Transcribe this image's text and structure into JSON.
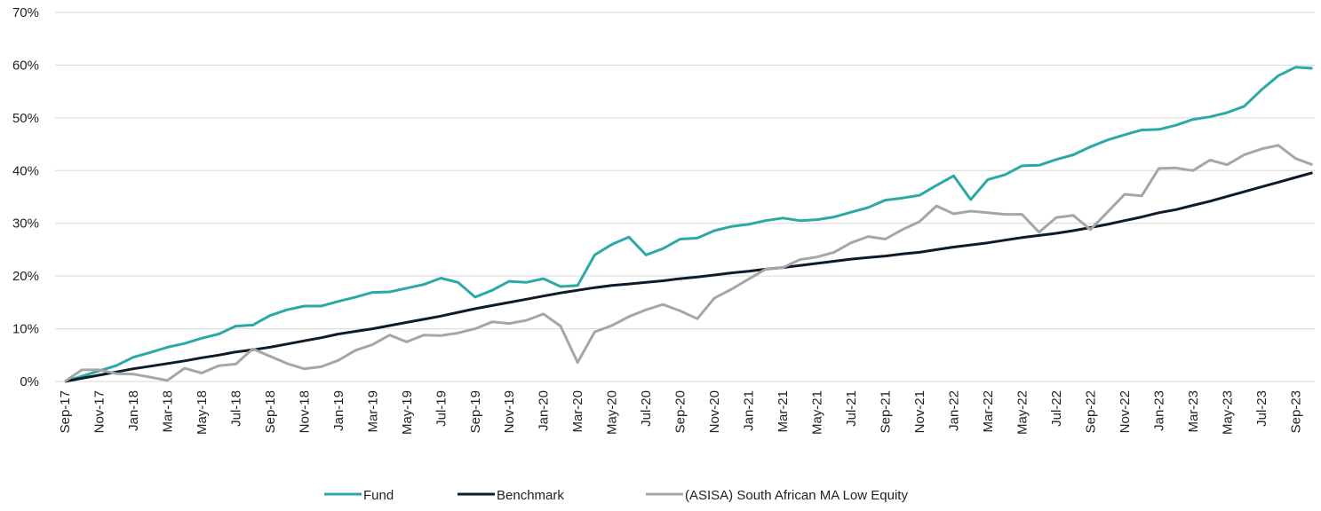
{
  "chart_data": {
    "type": "line",
    "categories": [
      "Sep-17",
      null,
      "Nov-17",
      null,
      "Jan-18",
      null,
      "Mar-18",
      null,
      "May-18",
      null,
      "Jul-18",
      null,
      "Sep-18",
      null,
      "Nov-18",
      null,
      "Jan-19",
      null,
      "Mar-19",
      null,
      "May-19",
      null,
      "Jul-19",
      null,
      "Sep-19",
      null,
      "Nov-19",
      null,
      "Jan-20",
      null,
      "Mar-20",
      null,
      "May-20",
      null,
      "Jul-20",
      null,
      "Sep-20",
      null,
      "Nov-20",
      null,
      "Jan-21",
      null,
      "Mar-21",
      null,
      "May-21",
      null,
      "Jul-21",
      null,
      "Sep-21",
      null,
      "Nov-21",
      null,
      "Jan-22",
      null,
      "Mar-22",
      null,
      "May-22",
      null,
      "Jul-22",
      null,
      "Sep-22",
      null,
      "Nov-22",
      null,
      "Jan-23",
      null,
      "Mar-23",
      null,
      "May-23",
      null,
      "Jul-23",
      null,
      "Sep-23",
      null
    ],
    "series": [
      {
        "name": "Fund",
        "color": "#2aa9a5",
        "values": [
          0,
          1.0,
          2.0,
          3.0,
          4.6,
          5.5,
          6.5,
          7.2,
          8.2,
          9.0,
          10.5,
          10.7,
          12.5,
          13.6,
          14.3,
          14.3,
          15.2,
          16.0,
          16.9,
          17.0,
          17.7,
          18.4,
          19.6,
          18.8,
          16.0,
          17.3,
          19.0,
          18.8,
          19.5,
          18.0,
          18.2,
          24.0,
          26.0,
          27.4,
          24.0,
          25.2,
          27.0,
          27.2,
          28.6,
          29.4,
          29.8,
          30.5,
          31.0,
          30.5,
          30.7,
          31.2,
          32.1,
          33.0,
          34.4,
          34.8,
          35.3,
          37.2,
          39.0,
          34.5,
          38.3,
          39.2,
          40.9,
          41.0,
          42.1,
          43.0,
          44.5,
          45.8,
          46.8,
          47.7,
          47.8,
          48.6,
          49.7,
          50.2,
          51.0,
          52.2,
          55.3,
          58.0,
          59.6,
          59.4
        ]
      },
      {
        "name": "Benchmark",
        "color": "#0d1b2a",
        "values": [
          0,
          0.6,
          1.2,
          1.8,
          2.4,
          2.9,
          3.4,
          3.9,
          4.5,
          5.0,
          5.6,
          6.0,
          6.5,
          7.1,
          7.7,
          8.3,
          9.0,
          9.5,
          10.0,
          10.6,
          11.2,
          11.8,
          12.4,
          13.1,
          13.8,
          14.4,
          15.0,
          15.6,
          16.2,
          16.8,
          17.3,
          17.8,
          18.2,
          18.5,
          18.8,
          19.1,
          19.5,
          19.8,
          20.2,
          20.6,
          20.9,
          21.3,
          21.6,
          22.0,
          22.4,
          22.8,
          23.2,
          23.5,
          23.8,
          24.2,
          24.5,
          25.0,
          25.5,
          25.9,
          26.3,
          26.8,
          27.3,
          27.7,
          28.1,
          28.6,
          29.2,
          29.8,
          30.5,
          31.2,
          32.0,
          32.6,
          33.4,
          34.2,
          35.1,
          36.0,
          36.9,
          37.8,
          38.7,
          39.6
        ]
      },
      {
        "name": "(ASISA) South African MA Low Equity",
        "color": "#a6a6a6",
        "values": [
          0,
          2.2,
          2.2,
          1.5,
          1.4,
          0.8,
          0.2,
          2.5,
          1.6,
          3.0,
          3.3,
          6.2,
          4.8,
          3.4,
          2.4,
          2.8,
          4.0,
          5.9,
          7.0,
          8.8,
          7.5,
          8.8,
          8.7,
          9.2,
          10.0,
          11.3,
          11.0,
          11.6,
          12.8,
          10.5,
          3.6,
          9.4,
          10.6,
          12.3,
          13.6,
          14.6,
          13.4,
          11.9,
          15.8,
          17.5,
          19.4,
          21.3,
          21.6,
          23.1,
          23.6,
          24.5,
          26.3,
          27.5,
          27.0,
          28.8,
          30.3,
          33.3,
          31.8,
          32.3,
          32.0,
          31.7,
          31.7,
          28.3,
          31.1,
          31.5,
          28.8,
          32.1,
          35.5,
          35.2,
          40.4,
          40.5,
          40.0,
          42.0,
          41.1,
          43.0,
          44.1,
          44.8,
          42.3,
          41.1
        ]
      }
    ],
    "ylim": [
      0,
      70
    ],
    "yticks": [
      {
        "value": 0,
        "label": "0%"
      },
      {
        "value": 10,
        "label": "10%"
      },
      {
        "value": 20,
        "label": "20%"
      },
      {
        "value": 30,
        "label": "30%"
      },
      {
        "value": 40,
        "label": "40%"
      },
      {
        "value": 50,
        "label": "50%"
      },
      {
        "value": 60,
        "label": "60%"
      },
      {
        "value": 70,
        "label": "70%"
      }
    ],
    "grid": true,
    "legend": "bottom"
  }
}
